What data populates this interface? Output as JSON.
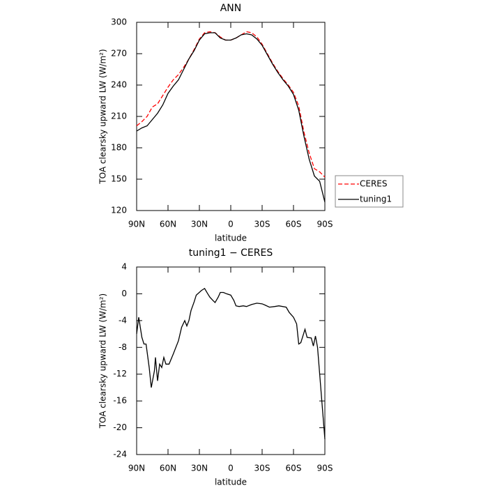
{
  "chart_data": [
    {
      "type": "line",
      "title": "ANN",
      "x_label": "latitude",
      "y_label": "TOA clearsky upward LW (W/m²)",
      "xlim": [
        90,
        -90
      ],
      "ylim": [
        120,
        300
      ],
      "xticks": [
        {
          "value": 90,
          "label": "90N"
        },
        {
          "value": 60,
          "label": "60N"
        },
        {
          "value": 30,
          "label": "30N"
        },
        0,
        {
          "value": -30,
          "label": "30S"
        },
        {
          "value": -60,
          "label": "60S"
        },
        {
          "value": -90,
          "label": "90S"
        }
      ],
      "yticks": [
        120,
        150,
        180,
        210,
        240,
        270,
        300
      ],
      "legend": "right",
      "x": [
        90,
        85,
        80,
        75,
        70,
        65,
        60,
        55,
        50,
        45,
        40,
        35,
        30,
        25,
        20,
        15,
        10,
        5,
        0,
        -5,
        -10,
        -15,
        -20,
        -25,
        -30,
        -35,
        -40,
        -45,
        -50,
        -55,
        -60,
        -65,
        -70,
        -75,
        -80,
        -85,
        -90
      ],
      "series": [
        {
          "name": "CERES",
          "color": "#ff0000",
          "dashed": true,
          "values": [
            201,
            205,
            210,
            219,
            222,
            230,
            238,
            245,
            250,
            257,
            265,
            274,
            284,
            290,
            291,
            290,
            286,
            283,
            283,
            285,
            288,
            291,
            290,
            286,
            279,
            270,
            261,
            253,
            246,
            240,
            233,
            220,
            195,
            175,
            160,
            157,
            152
          ]
        },
        {
          "name": "tuning1",
          "color": "#000000",
          "dashed": false,
          "values": [
            196,
            199,
            201,
            207,
            213,
            221,
            232,
            239,
            245,
            255,
            265,
            273,
            283,
            289,
            290,
            290,
            285,
            283,
            283,
            285,
            288,
            289,
            288,
            284,
            278,
            269,
            260,
            252,
            245,
            239,
            231,
            216,
            191,
            169,
            153,
            148,
            128
          ]
        }
      ]
    },
    {
      "type": "line",
      "title": "tuning1 − CERES",
      "x_label": "latitude",
      "y_label": "TOA clearsky upward LW (W/m²)",
      "xlim": [
        90,
        -90
      ],
      "ylim": [
        -24,
        4
      ],
      "xticks": [
        {
          "value": 90,
          "label": "90N"
        },
        {
          "value": 60,
          "label": "60N"
        },
        {
          "value": 30,
          "label": "30N"
        },
        0,
        {
          "value": -30,
          "label": "30S"
        },
        {
          "value": -60,
          "label": "60S"
        },
        {
          "value": -90,
          "label": "90S"
        }
      ],
      "yticks": [
        -24,
        -20,
        -16,
        -12,
        -8,
        -4,
        0,
        4
      ],
      "color": "#000000",
      "x": [
        90,
        88,
        85,
        83,
        81,
        78,
        76,
        73,
        72,
        70,
        68,
        66,
        64,
        62,
        59,
        55,
        50,
        47,
        44,
        42,
        40,
        38,
        35,
        33,
        28,
        25,
        22,
        20,
        17,
        15,
        12,
        10,
        7,
        4,
        0,
        -3,
        -5,
        -8,
        -12,
        -15,
        -20,
        -25,
        -30,
        -33,
        -37,
        -42,
        -46,
        -53,
        -56,
        -60,
        -63,
        -65,
        -67,
        -71,
        -73,
        -77,
        -79,
        -81,
        -83,
        -90
      ],
      "values": [
        -6,
        -3.5,
        -6.5,
        -7.5,
        -7.5,
        -11,
        -14,
        -11.5,
        -9.5,
        -13,
        -10.5,
        -11,
        -9.5,
        -10.5,
        -10.5,
        -9,
        -7,
        -5,
        -4,
        -4.8,
        -4,
        -2.5,
        -1.2,
        -0.2,
        0.5,
        0.8,
        0,
        -0.5,
        -1,
        -1.3,
        -0.5,
        0.2,
        0.2,
        0,
        -0.2,
        -1,
        -1.8,
        -1.9,
        -1.8,
        -1.9,
        -1.6,
        -1.4,
        -1.5,
        -1.7,
        -2,
        -1.9,
        -1.8,
        -2,
        -2.8,
        -3.5,
        -4.5,
        -7.5,
        -7.3,
        -5.3,
        -6.5,
        -6.6,
        -7.8,
        -6.3,
        -8,
        -21.7
      ]
    }
  ]
}
